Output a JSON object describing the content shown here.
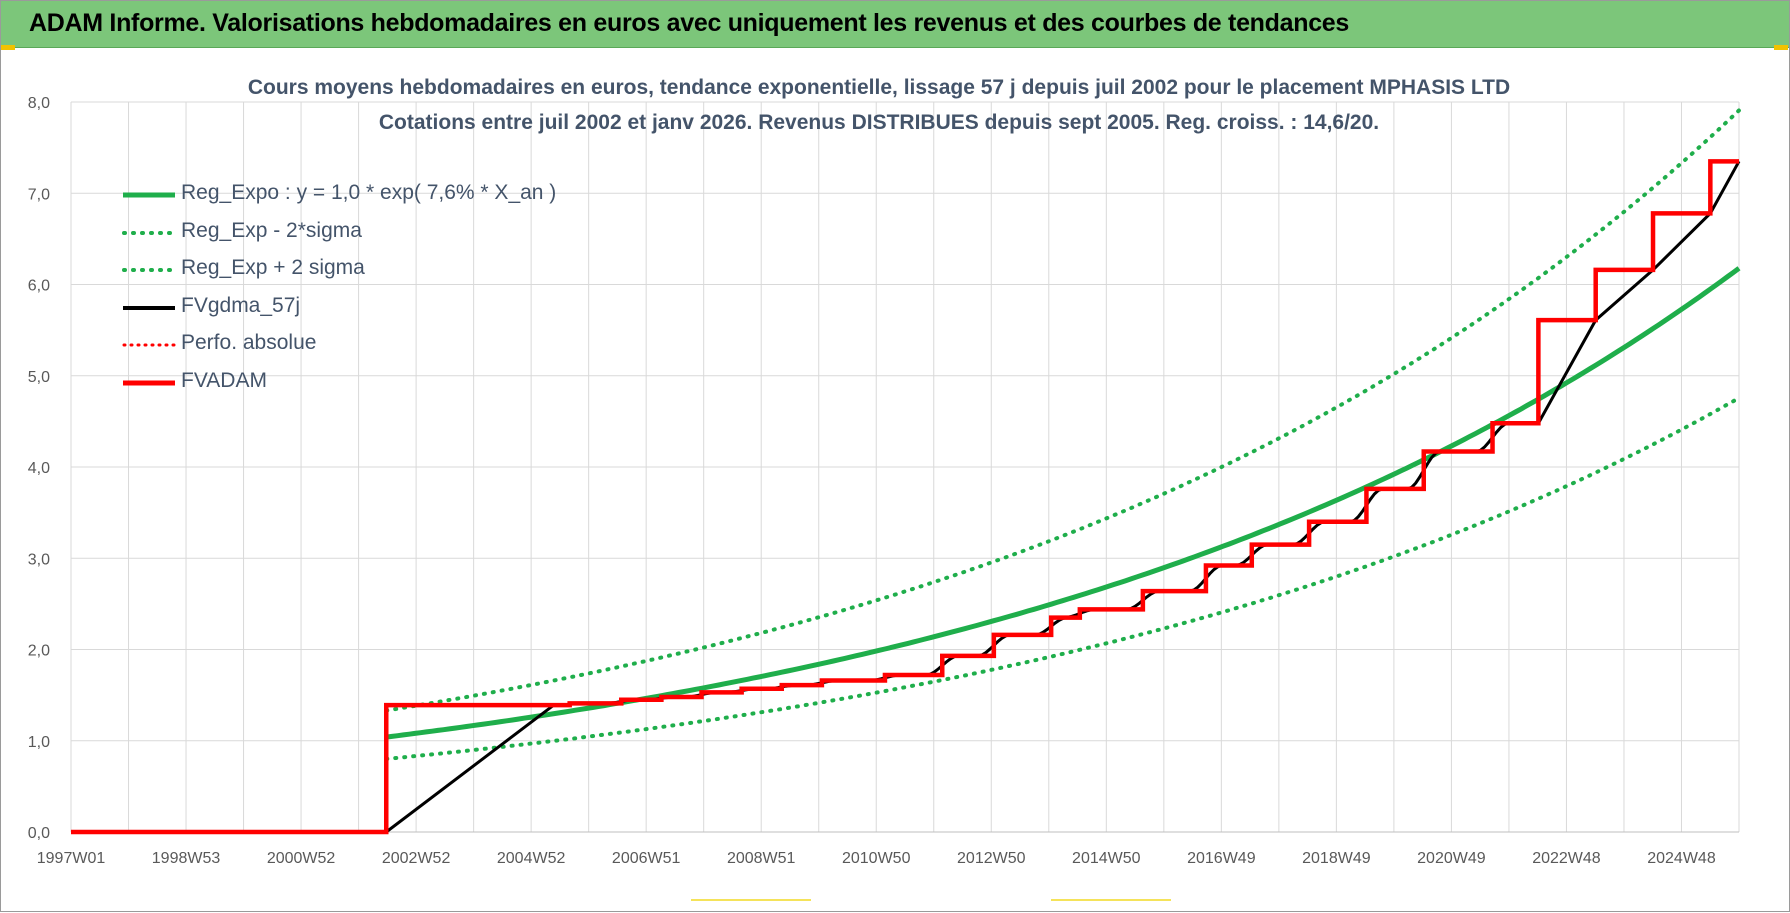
{
  "banner": {
    "title": "ADAM Informe. Valorisations hebdomadaires en euros avec uniquement les revenus et des courbes de tendances"
  },
  "colors": {
    "banner": "#7cc67a",
    "grid": "#d9d9d9",
    "axis_text": "#595959",
    "title_text": "#44546a",
    "reg": "#1fae4b",
    "fv": "#000000",
    "adam": "#ff0000"
  },
  "chart_data": {
    "type": "line",
    "title": "Cours moyens hebdomadaires en euros, tendance exponentielle, lissage 57 j depuis juil 2002 pour le placement MPHASIS LTD",
    "subtitle": "Cotations entre juil 2002 et janv 2026. Revenus DISTRIBUES depuis sept 2005. Reg. croiss. : 14,6/20.",
    "x_tick_labels": [
      "1997W01",
      "1998W53",
      "2000W52",
      "2002W52",
      "2004W52",
      "2006W51",
      "2008W51",
      "2010W50",
      "2012W50",
      "2014W50",
      "2016W49",
      "2018W49",
      "2020W49",
      "2022W48",
      "2024W48"
    ],
    "y_tick_labels": [
      "0,0",
      "1,0",
      "2,0",
      "3,0",
      "4,0",
      "5,0",
      "6,0",
      "7,0",
      "8,0"
    ],
    "xlim": [
      1997.0,
      2026.1
    ],
    "ylim": [
      0,
      8
    ],
    "grid": true,
    "legend_position": "top-left",
    "regression": {
      "start": 2002.5,
      "end": 2026.1,
      "a": 1.04,
      "rate": 0.0755,
      "sigma_low_factor": 0.77,
      "sigma_high_factor": 1.28
    },
    "series": [
      {
        "name": "Reg_Expo : y = 1,0 * exp( 7,6% *  X_an )",
        "style": "solid-green"
      },
      {
        "name": "Reg_Exp - 2*sigma",
        "style": "dotted-green"
      },
      {
        "name": "Reg_Exp + 2 sigma",
        "style": "dotted-green"
      },
      {
        "name": "FVgdma_57j",
        "style": "solid-black"
      },
      {
        "name": "Perfo. absolue",
        "style": "dotted-red"
      },
      {
        "name": "FVADAM",
        "style": "solid-red"
      }
    ],
    "fvadam_steps": [
      {
        "x": 1997.0,
        "y": 0.0
      },
      {
        "x": 2002.5,
        "y": 1.39
      },
      {
        "x": 2005.7,
        "y": 1.41
      },
      {
        "x": 2006.6,
        "y": 1.45
      },
      {
        "x": 2007.3,
        "y": 1.48
      },
      {
        "x": 2008.0,
        "y": 1.53
      },
      {
        "x": 2008.7,
        "y": 1.57
      },
      {
        "x": 2009.4,
        "y": 1.61
      },
      {
        "x": 2010.1,
        "y": 1.66
      },
      {
        "x": 2011.2,
        "y": 1.72
      },
      {
        "x": 2012.2,
        "y": 1.93
      },
      {
        "x": 2013.1,
        "y": 2.16
      },
      {
        "x": 2014.1,
        "y": 2.35
      },
      {
        "x": 2014.6,
        "y": 2.44
      },
      {
        "x": 2015.7,
        "y": 2.64
      },
      {
        "x": 2016.8,
        "y": 2.92
      },
      {
        "x": 2017.6,
        "y": 3.15
      },
      {
        "x": 2018.6,
        "y": 3.4
      },
      {
        "x": 2019.6,
        "y": 3.76
      },
      {
        "x": 2020.6,
        "y": 4.17
      },
      {
        "x": 2021.8,
        "y": 4.48
      },
      {
        "x": 2022.6,
        "y": 5.61
      },
      {
        "x": 2023.6,
        "y": 6.16
      },
      {
        "x": 2024.6,
        "y": 6.78
      },
      {
        "x": 2025.6,
        "y": 7.35
      }
    ],
    "fvadam_end": {
      "x": 2026.1,
      "y": 7.35
    }
  }
}
